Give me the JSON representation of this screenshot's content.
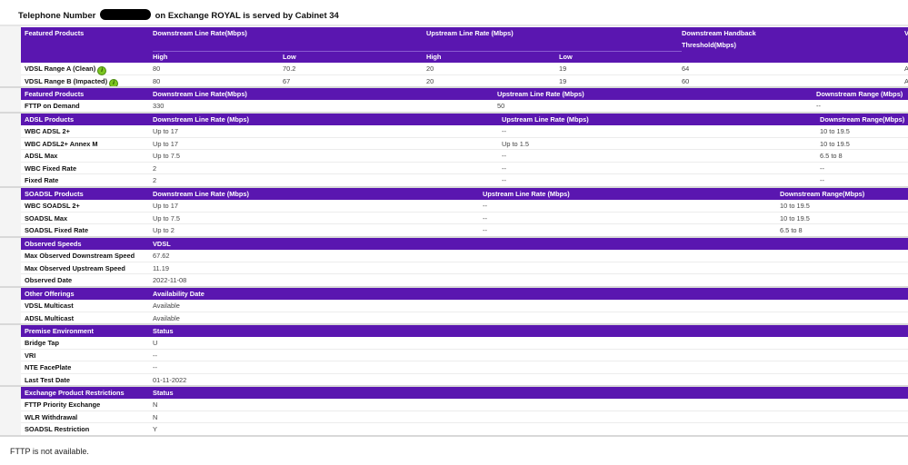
{
  "header": {
    "title_prefix": "Telephone Number",
    "title_suffix": "on Exchange ROYAL is served by Cabinet 34"
  },
  "colors": {
    "header_bg": "#5a16b0",
    "info_icon": "#7cc520"
  },
  "sections": [
    {
      "id": "featured-vdsl",
      "headers": [
        "Featured Products",
        "Downstream Line Rate(Mbps)",
        "",
        "Upstream Line Rate (Mbps)",
        "",
        "Downstream Handback Threshold(Mbps)",
        "V"
      ],
      "subheaders": [
        "",
        "High",
        "Low",
        "High",
        "Low",
        "",
        ""
      ],
      "rows": [
        {
          "cells": [
            "VDSL Range A (Clean)",
            "80",
            "70.2",
            "20",
            "19",
            "64",
            "A"
          ],
          "icon": "info-icon"
        },
        {
          "cells": [
            "VDSL Range B (Impacted)",
            "80",
            "67",
            "20",
            "19",
            "60",
            "A"
          ],
          "icon": "info-icon"
        }
      ]
    },
    {
      "id": "featured-fttp",
      "headers": [
        "Featured Products",
        "Downstream Line Rate(Mbps)",
        "Upstream Line Rate (Mbps)",
        "Downstream Range (Mbps)"
      ],
      "rows": [
        {
          "cells": [
            "FTTP on Demand",
            "330",
            "50",
            "--"
          ]
        }
      ]
    },
    {
      "id": "adsl",
      "headers": [
        "ADSL Products",
        "Downstream Line Rate (Mbps)",
        "Upstream Line Rate (Mbps)",
        "Downstream Range(Mbps)"
      ],
      "rows": [
        {
          "cells": [
            "WBC ADSL 2+",
            "Up to 17",
            "--",
            "10 to 19.5"
          ]
        },
        {
          "cells": [
            "WBC ADSL2+ Annex M",
            "Up to 17",
            "Up to 1.5",
            "10 to 19.5"
          ]
        },
        {
          "cells": [
            "ADSL Max",
            "Up to 7.5",
            "--",
            "6.5 to 8"
          ]
        },
        {
          "cells": [
            "WBC Fixed Rate",
            "2",
            "--",
            "--"
          ]
        },
        {
          "cells": [
            "Fixed Rate",
            "2",
            "--",
            "--"
          ]
        }
      ]
    },
    {
      "id": "soadsl",
      "headers": [
        "SOADSL Products",
        "Downstream Line Rate (Mbps)",
        "Upstream Line Rate (Mbps)",
        "Downstream Range(Mbps)"
      ],
      "rows": [
        {
          "cells": [
            "WBC SOADSL 2+",
            "Up to 17",
            "--",
            "10 to 19.5"
          ]
        },
        {
          "cells": [
            "SOADSL Max",
            "Up to 7.5",
            "--",
            "10 to 19.5"
          ]
        },
        {
          "cells": [
            "SOADSL Fixed Rate",
            "Up to 2",
            "--",
            "6.5 to 8"
          ]
        }
      ]
    },
    {
      "id": "observed",
      "headers": [
        "Observed Speeds",
        "VDSL"
      ],
      "rows": [
        {
          "cells": [
            "Max Observed Downstream Speed",
            "67.62"
          ]
        },
        {
          "cells": [
            "Max Observed Upstream Speed",
            "11.19"
          ]
        },
        {
          "cells": [
            "Observed Date",
            "2022-11-08"
          ]
        }
      ]
    },
    {
      "id": "other",
      "headers": [
        "Other Offerings",
        "Availability Date"
      ],
      "rows": [
        {
          "cells": [
            "VDSL Multicast",
            "Available"
          ]
        },
        {
          "cells": [
            "ADSL Multicast",
            "Available"
          ]
        }
      ]
    },
    {
      "id": "premise",
      "headers": [
        "Premise Environment",
        "Status"
      ],
      "rows": [
        {
          "cells": [
            "Bridge Tap",
            "U"
          ]
        },
        {
          "cells": [
            "VRI",
            "--"
          ]
        },
        {
          "cells": [
            "NTE FacePlate",
            "--"
          ]
        },
        {
          "cells": [
            "Last Test Date",
            "01-11-2022"
          ]
        }
      ]
    },
    {
      "id": "restrictions",
      "headers": [
        "Exchange Product Restrictions",
        "Status"
      ],
      "rows": [
        {
          "cells": [
            "FTTP Priority Exchange",
            "N"
          ]
        },
        {
          "cells": [
            "WLR Withdrawal",
            "N"
          ]
        },
        {
          "cells": [
            "SOADSL Restriction",
            "Y"
          ]
        }
      ]
    }
  ],
  "footer": {
    "message": "FTTP is not available."
  }
}
